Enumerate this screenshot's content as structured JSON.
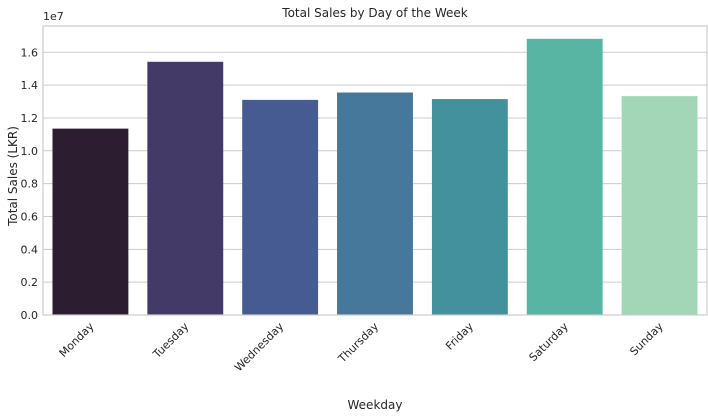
{
  "chart_data": {
    "type": "bar",
    "title": "Total Sales by Day of the Week",
    "xlabel": "Weekday",
    "ylabel": "Total Sales (LKR)",
    "offset_label": "1e7",
    "categories": [
      "Monday",
      "Tuesday",
      "Wednesday",
      "Thursday",
      "Friday",
      "Saturday",
      "Sunday"
    ],
    "values": [
      11350000,
      15420000,
      13100000,
      13550000,
      13150000,
      16820000,
      13330000
    ],
    "colors": [
      "#2c1e30",
      "#433a68",
      "#465b92",
      "#45789a",
      "#42919c",
      "#58b5a4",
      "#a3d6b7"
    ],
    "ylim": [
      0,
      17600000
    ],
    "yticks": [
      0,
      2000000,
      4000000,
      6000000,
      8000000,
      10000000,
      12000000,
      14000000,
      16000000
    ],
    "ytick_labels": [
      "0.0",
      "0.2",
      "0.4",
      "0.6",
      "0.8",
      "1.0",
      "1.2",
      "1.4",
      "1.6"
    ],
    "grid": true,
    "legend": "none"
  }
}
